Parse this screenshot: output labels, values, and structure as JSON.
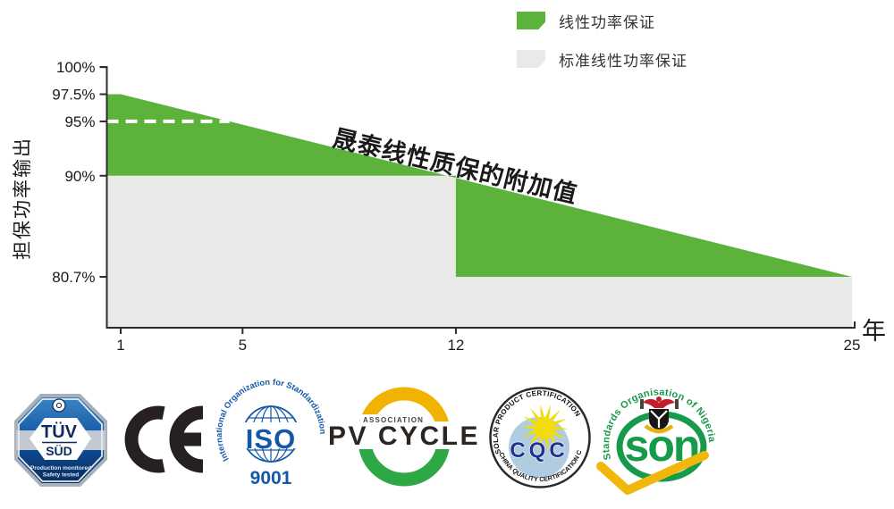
{
  "chart": {
    "y_axis_title": "担保功率输出",
    "x_axis_unit": "年",
    "annotation": "晟泰线性质保的附加值",
    "legend": [
      {
        "label": "线性功率保证",
        "color": "#5CB23A"
      },
      {
        "label": "标准线性功率保证",
        "color": "#E9E9E7"
      }
    ]
  },
  "chart_data": {
    "type": "area",
    "title": "",
    "xlabel": "年",
    "ylabel": "担保功率输出",
    "xlim": [
      1,
      25
    ],
    "x_ticks": [
      {
        "label": "1",
        "value": 1
      },
      {
        "label": "5",
        "value": 5
      },
      {
        "label": "12",
        "value": 12
      },
      {
        "label": "25",
        "value": 25
      }
    ],
    "y_ticks": [
      {
        "label": "100%",
        "value": 100
      },
      {
        "label": "97.5%",
        "value": 97.5
      },
      {
        "label": "95%",
        "value": 95
      },
      {
        "label": "90%",
        "value": 90
      },
      {
        "label": "80.7%",
        "value": 80.7
      }
    ],
    "series": [
      {
        "name": "线性功率保证",
        "color": "#5CB23A",
        "x": [
          1,
          25
        ],
        "values": [
          97.5,
          80.7
        ]
      },
      {
        "name": "标准线性功率保证",
        "color": "#E9E9E7",
        "x": [
          1,
          12,
          12,
          25
        ],
        "values": [
          90,
          90,
          80.7,
          80.7
        ]
      }
    ],
    "guide_line": {
      "percent": 95,
      "style": "white-dashed"
    },
    "legend_position": "top-right",
    "grid": false
  },
  "certifications": {
    "tuv": {
      "name": "TÜV",
      "region": "SÜD",
      "tagline1": "Production monitored",
      "tagline2": "Safety tested"
    },
    "ce": {
      "label": "CE"
    },
    "iso": {
      "arc": "International Organization for Standardization",
      "name": "ISO",
      "number": "9001"
    },
    "pvcycle": {
      "association": "ASSOCIATION",
      "name": "PV CYCLE"
    },
    "cqc": {
      "arc_top": "SOLAR PRODUCT CERTIFICATION",
      "name": "CQC",
      "arc_bottom": "CHINA QUALITY CERTIFICATION CENTER"
    },
    "son": {
      "arc": "Standards Organisation of Nigeria",
      "name": "SON"
    }
  }
}
